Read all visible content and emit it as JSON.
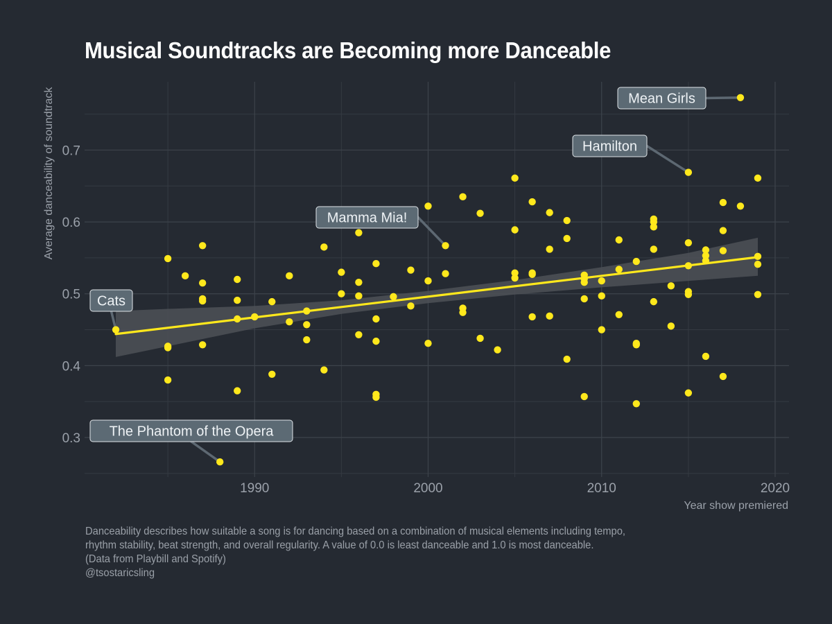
{
  "chart_data": {
    "type": "scatter",
    "title": "Musical Soundtracks are Becoming more Danceable",
    "xlabel": "Year show premiered",
    "ylabel": "Average danceability of soundtrack",
    "xlim": [
      1980.2,
      2020.8
    ],
    "ylim": [
      0.245,
      0.795
    ],
    "xticks": [
      1990,
      2000,
      2010,
      2020
    ],
    "yticks": [
      0.3,
      0.4,
      0.5,
      0.6,
      0.7
    ],
    "grid": true,
    "point_color": "#ffe81c",
    "trend_color": "#ffe81c",
    "band_color": "#4d5157",
    "trend": {
      "x": [
        1982,
        2019
      ],
      "y": [
        0.444,
        0.551
      ]
    },
    "band": {
      "x": [
        1982,
        1985,
        1990,
        1995,
        2000,
        2005,
        2010,
        2015,
        2019
      ],
      "lower": [
        0.412,
        0.427,
        0.452,
        0.472,
        0.487,
        0.499,
        0.509,
        0.518,
        0.525
      ],
      "upper": [
        0.476,
        0.479,
        0.483,
        0.491,
        0.504,
        0.519,
        0.537,
        0.557,
        0.578
      ]
    },
    "points": [
      {
        "x": 1982,
        "y": 0.45
      },
      {
        "x": 1985,
        "y": 0.549
      },
      {
        "x": 1985,
        "y": 0.427
      },
      {
        "x": 1985,
        "y": 0.425
      },
      {
        "x": 1985,
        "y": 0.38
      },
      {
        "x": 1986,
        "y": 0.525
      },
      {
        "x": 1987,
        "y": 0.567
      },
      {
        "x": 1987,
        "y": 0.515
      },
      {
        "x": 1987,
        "y": 0.493
      },
      {
        "x": 1987,
        "y": 0.49
      },
      {
        "x": 1987,
        "y": 0.429
      },
      {
        "x": 1988,
        "y": 0.266
      },
      {
        "x": 1989,
        "y": 0.52
      },
      {
        "x": 1989,
        "y": 0.491
      },
      {
        "x": 1989,
        "y": 0.465
      },
      {
        "x": 1989,
        "y": 0.365
      },
      {
        "x": 1990,
        "y": 0.468
      },
      {
        "x": 1991,
        "y": 0.489
      },
      {
        "x": 1991,
        "y": 0.388
      },
      {
        "x": 1992,
        "y": 0.525
      },
      {
        "x": 1992,
        "y": 0.461
      },
      {
        "x": 1993,
        "y": 0.476
      },
      {
        "x": 1993,
        "y": 0.457
      },
      {
        "x": 1993,
        "y": 0.436
      },
      {
        "x": 1994,
        "y": 0.565
      },
      {
        "x": 1994,
        "y": 0.394
      },
      {
        "x": 1995,
        "y": 0.53
      },
      {
        "x": 1995,
        "y": 0.5
      },
      {
        "x": 1996,
        "y": 0.585
      },
      {
        "x": 1996,
        "y": 0.516
      },
      {
        "x": 1996,
        "y": 0.497
      },
      {
        "x": 1996,
        "y": 0.443
      },
      {
        "x": 1997,
        "y": 0.542
      },
      {
        "x": 1997,
        "y": 0.465
      },
      {
        "x": 1997,
        "y": 0.434
      },
      {
        "x": 1997,
        "y": 0.36
      },
      {
        "x": 1997,
        "y": 0.356
      },
      {
        "x": 1998,
        "y": 0.496
      },
      {
        "x": 1999,
        "y": 0.533
      },
      {
        "x": 1999,
        "y": 0.483
      },
      {
        "x": 2000,
        "y": 0.622
      },
      {
        "x": 2000,
        "y": 0.518
      },
      {
        "x": 2000,
        "y": 0.431
      },
      {
        "x": 2001,
        "y": 0.567
      },
      {
        "x": 2001,
        "y": 0.528
      },
      {
        "x": 2002,
        "y": 0.635
      },
      {
        "x": 2002,
        "y": 0.48
      },
      {
        "x": 2002,
        "y": 0.474
      },
      {
        "x": 2003,
        "y": 0.612
      },
      {
        "x": 2003,
        "y": 0.438
      },
      {
        "x": 2004,
        "y": 0.422
      },
      {
        "x": 2005,
        "y": 0.661
      },
      {
        "x": 2005,
        "y": 0.589
      },
      {
        "x": 2005,
        "y": 0.529
      },
      {
        "x": 2005,
        "y": 0.522
      },
      {
        "x": 2006,
        "y": 0.628
      },
      {
        "x": 2006,
        "y": 0.529
      },
      {
        "x": 2006,
        "y": 0.527
      },
      {
        "x": 2006,
        "y": 0.468
      },
      {
        "x": 2007,
        "y": 0.613
      },
      {
        "x": 2007,
        "y": 0.562
      },
      {
        "x": 2007,
        "y": 0.469
      },
      {
        "x": 2008,
        "y": 0.602
      },
      {
        "x": 2008,
        "y": 0.577
      },
      {
        "x": 2008,
        "y": 0.409
      },
      {
        "x": 2009,
        "y": 0.526
      },
      {
        "x": 2009,
        "y": 0.521
      },
      {
        "x": 2009,
        "y": 0.516
      },
      {
        "x": 2009,
        "y": 0.493
      },
      {
        "x": 2009,
        "y": 0.357
      },
      {
        "x": 2010,
        "y": 0.518
      },
      {
        "x": 2010,
        "y": 0.497
      },
      {
        "x": 2010,
        "y": 0.45
      },
      {
        "x": 2011,
        "y": 0.575
      },
      {
        "x": 2011,
        "y": 0.534
      },
      {
        "x": 2011,
        "y": 0.471
      },
      {
        "x": 2012,
        "y": 0.545
      },
      {
        "x": 2012,
        "y": 0.431
      },
      {
        "x": 2012,
        "y": 0.429
      },
      {
        "x": 2012,
        "y": 0.347
      },
      {
        "x": 2013,
        "y": 0.604
      },
      {
        "x": 2013,
        "y": 0.6
      },
      {
        "x": 2013,
        "y": 0.593
      },
      {
        "x": 2013,
        "y": 0.562
      },
      {
        "x": 2013,
        "y": 0.489
      },
      {
        "x": 2014,
        "y": 0.511
      },
      {
        "x": 2014,
        "y": 0.455
      },
      {
        "x": 2015,
        "y": 0.669
      },
      {
        "x": 2015,
        "y": 0.571
      },
      {
        "x": 2015,
        "y": 0.539
      },
      {
        "x": 2015,
        "y": 0.503
      },
      {
        "x": 2015,
        "y": 0.499
      },
      {
        "x": 2015,
        "y": 0.362
      },
      {
        "x": 2016,
        "y": 0.561
      },
      {
        "x": 2016,
        "y": 0.553
      },
      {
        "x": 2016,
        "y": 0.546
      },
      {
        "x": 2016,
        "y": 0.413
      },
      {
        "x": 2017,
        "y": 0.627
      },
      {
        "x": 2017,
        "y": 0.588
      },
      {
        "x": 2017,
        "y": 0.56
      },
      {
        "x": 2017,
        "y": 0.385
      },
      {
        "x": 2018,
        "y": 0.773
      },
      {
        "x": 2018,
        "y": 0.622
      },
      {
        "x": 2019,
        "y": 0.661
      },
      {
        "x": 2019,
        "y": 0.552
      },
      {
        "x": 2019,
        "y": 0.541
      },
      {
        "x": 2019,
        "y": 0.499
      }
    ],
    "annotations": [
      {
        "label": "Mean Girls",
        "x": 2018,
        "y": 0.773
      },
      {
        "label": "Hamilton",
        "x": 2015,
        "y": 0.669
      },
      {
        "label": "Mamma Mia!",
        "x": 2001,
        "y": 0.567
      },
      {
        "label": "Cats",
        "x": 1982,
        "y": 0.45
      },
      {
        "label": "The Phantom of the Opera",
        "x": 1988,
        "y": 0.266
      }
    ]
  },
  "caption": {
    "line1": "Danceability describes how suitable a song is for dancing based on a combination of musical elements including tempo,",
    "line2": "rhythm stability, beat strength, and overall regularity. A value of 0.0 is least danceable and 1.0 is most danceable.",
    "line3": "(Data from Playbill and Spotify)",
    "line4": "@tsostaricsling"
  }
}
